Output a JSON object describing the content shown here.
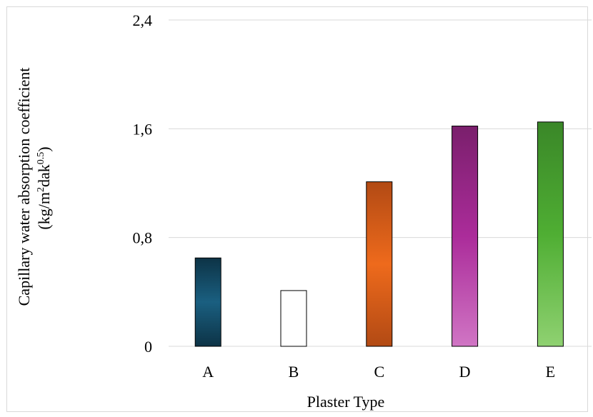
{
  "chart_data": {
    "type": "bar",
    "categories": [
      "A",
      "B",
      "C",
      "D",
      "E"
    ],
    "values": [
      0.65,
      0.41,
      1.21,
      1.62,
      1.65
    ],
    "xlabel": "Plaster Type",
    "ylabel": {
      "line1": "Capillary water absorption coefficient",
      "line2_prefix": "(kg/m",
      "line2_sup1": "2",
      "line2_mid": "dak",
      "line2_sup2": "0.5",
      "line2_suffix": ")"
    },
    "ylim": [
      0,
      2.4
    ],
    "yticks": [
      "0",
      "0,8",
      "1,6",
      "2,4"
    ],
    "ytick_values": [
      0,
      0.8,
      1.6,
      2.4
    ],
    "grid": true,
    "legend": "none",
    "colors": [
      {
        "edge": "#0d3346",
        "mid": "#1a5f80"
      },
      {
        "edge": "#ffffff",
        "mid": "#ffffff"
      },
      {
        "edge": "#b24a14",
        "mid": "#ee6a1c"
      },
      {
        "edge": "#7a1f6c",
        "mid": "#ab2c9a",
        "bottom": "#d075c4"
      },
      {
        "edge": "#3a8728",
        "mid": "#4fae33",
        "bottom": "#8fd171"
      }
    ]
  }
}
